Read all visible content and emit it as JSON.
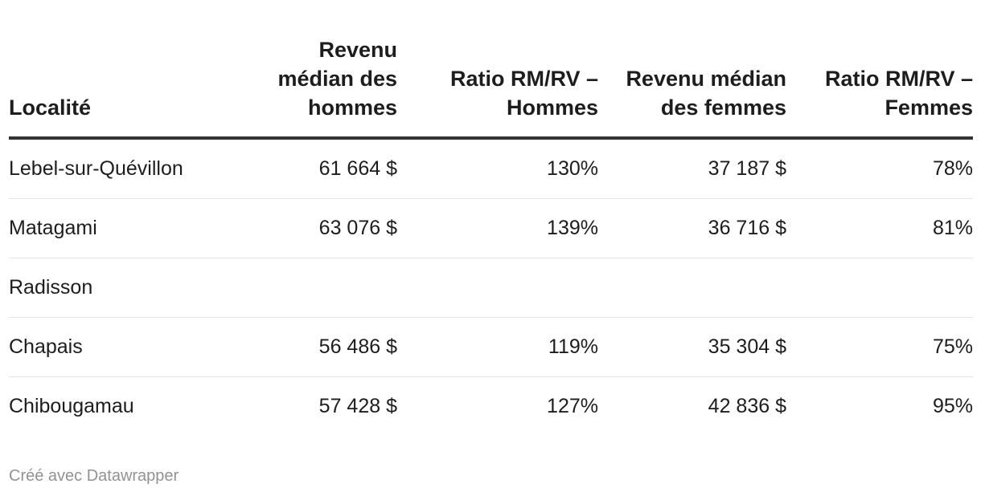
{
  "chart_data": {
    "type": "table",
    "columns": [
      "Localité",
      "Revenu médian des hommes",
      "Ratio RM/RV – Hommes",
      "Revenu médian des femmes",
      "Ratio RM/RV – Femmes"
    ],
    "rows": [
      [
        "Lebel-sur-Quévillon",
        "61 664 $",
        "130%",
        "37 187 $",
        "78%"
      ],
      [
        "Matagami",
        "63 076 $",
        "139%",
        "36 716 $",
        "81%"
      ],
      [
        "Radisson",
        "",
        "",
        "",
        ""
      ],
      [
        "Chapais",
        "56 486 $",
        "119%",
        "35 304 $",
        "75%"
      ],
      [
        "Chibougamau",
        "57 428 $",
        "127%",
        "42 836 $",
        "95%"
      ]
    ]
  },
  "footer": "Créé avec Datawrapper"
}
